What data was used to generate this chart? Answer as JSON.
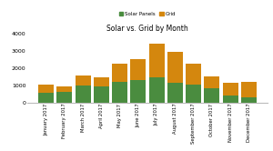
{
  "title": "Solar vs. Grid by Month",
  "months": [
    "January 2017",
    "February 2017",
    "March 2017",
    "April 2017",
    "May 2017",
    "June 2017",
    "July 2017",
    "August 2017",
    "September 2017",
    "October 2017",
    "November 2017",
    "December 2017"
  ],
  "solar_panels": [
    580,
    620,
    980,
    920,
    1180,
    1280,
    1480,
    1150,
    1050,
    850,
    430,
    320
  ],
  "grid": [
    440,
    330,
    580,
    540,
    1070,
    1220,
    1900,
    1800,
    1200,
    680,
    720,
    900
  ],
  "solar_color": "#4a8c3f",
  "grid_color": "#d4870e",
  "legend_solar": "Solar Panels",
  "legend_grid": "Grid",
  "ylim": [
    0,
    4000
  ],
  "yticks": [
    0,
    1000,
    2000,
    3000,
    4000
  ],
  "background_color": "#ffffff",
  "bar_width": 0.85
}
